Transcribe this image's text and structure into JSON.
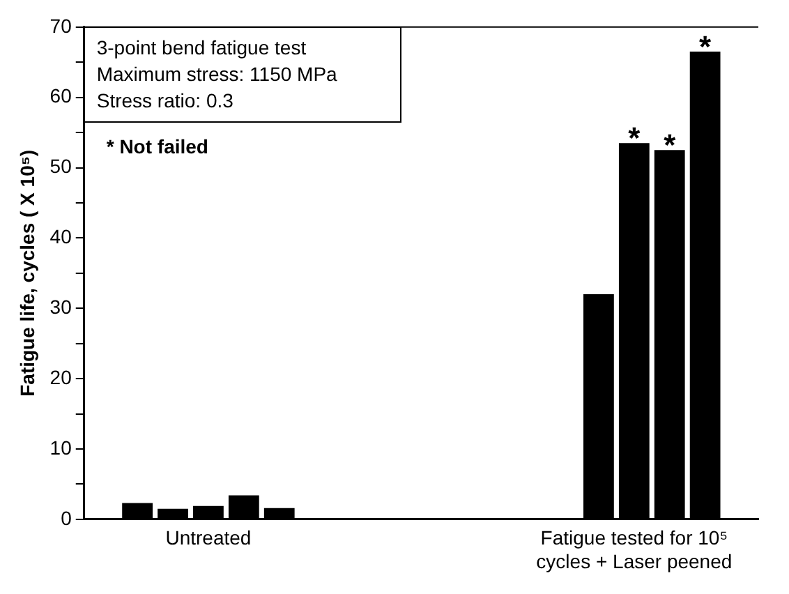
{
  "chart_data": {
    "type": "bar",
    "ylabel": "Fatigue life, cycles ( X 10⁵)",
    "categories": [
      null,
      null,
      null,
      "Untreated",
      null,
      null,
      null,
      null,
      null,
      null,
      null,
      null,
      null,
      null,
      null,
      "Fatigue tested for 10⁵ cycles + Laser peened",
      null,
      null,
      null
    ],
    "values": [
      null,
      2.3,
      1.5,
      1.9,
      3.4,
      1.6,
      null,
      null,
      null,
      null,
      null,
      null,
      null,
      null,
      32,
      53.5,
      52.5,
      66.5,
      null
    ],
    "value_labels": [
      null,
      null,
      null,
      null,
      null,
      null,
      null,
      null,
      null,
      null,
      null,
      null,
      null,
      null,
      null,
      "*",
      "*",
      "*",
      null
    ],
    "color": "#000000",
    "ylim": [
      0,
      70
    ],
    "yticks": [
      0,
      {
        "value": 5,
        "label": null
      },
      10,
      {
        "value": 15,
        "label": null
      },
      20,
      {
        "value": 25,
        "label": null
      },
      30,
      {
        "value": 35,
        "label": null
      },
      40,
      {
        "value": 45,
        "label": null
      },
      50,
      {
        "value": 55,
        "label": null
      },
      60,
      {
        "value": 65,
        "label": null
      },
      70
    ],
    "grid": false,
    "annotations": [
      "3-point bend fatigue test",
      "Maximum stress: 1150 MPa",
      "Stress ratio: 0.3",
      "* Not failed"
    ]
  }
}
